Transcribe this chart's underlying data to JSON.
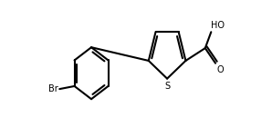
{
  "bg_color": "#ffffff",
  "line_color": "#000000",
  "line_width": 1.5,
  "text_color": "#000000",
  "S_label": "S",
  "O_label": "O",
  "OH_label": "HO",
  "Br_label": "Br",
  "figsize": [
    2.98,
    1.4
  ],
  "dpi": 100,
  "xlim": [
    0,
    10
  ],
  "ylim": [
    0,
    3.5
  ]
}
